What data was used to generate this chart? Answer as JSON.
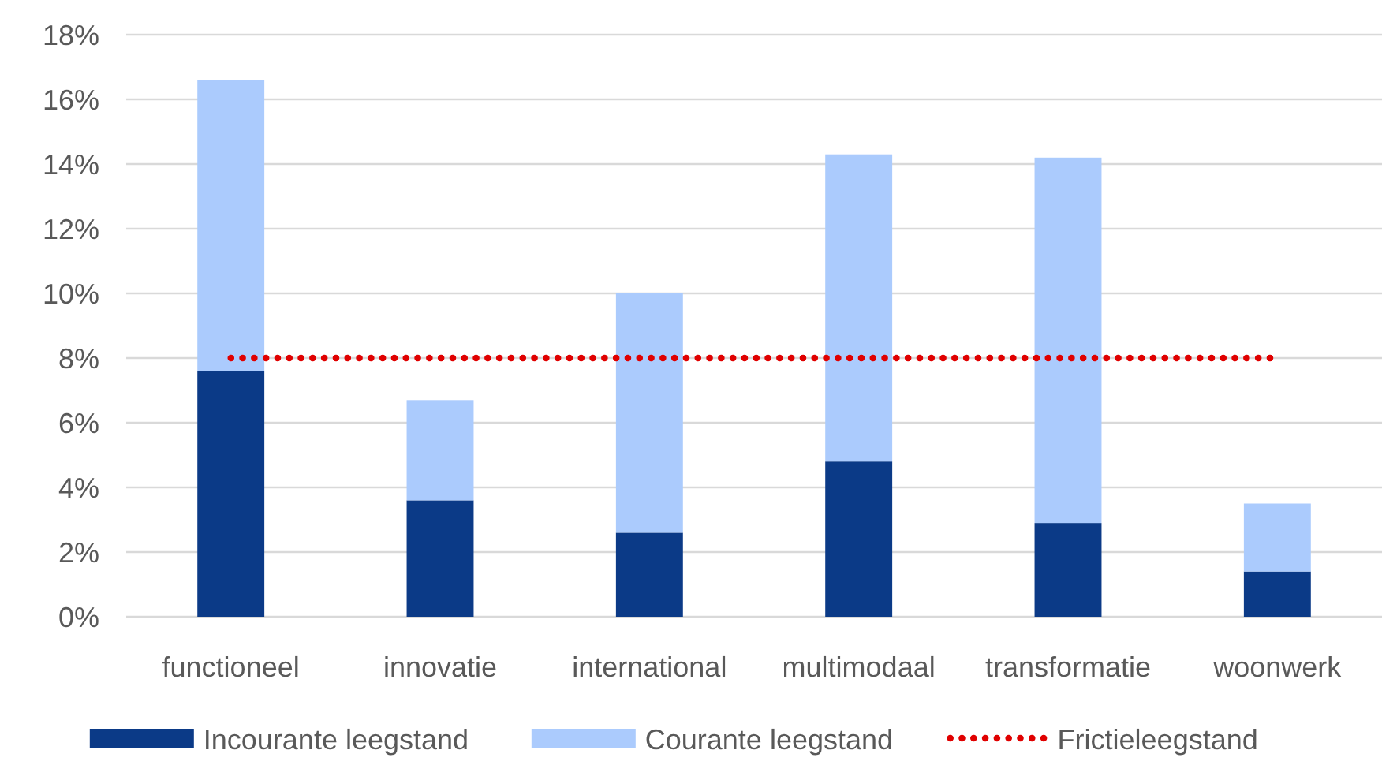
{
  "chart_data": {
    "type": "bar",
    "stacked": true,
    "categories": [
      "functioneel",
      "innovatie",
      "international",
      "multimodaal",
      "transformatie",
      "woonwerk"
    ],
    "series": [
      {
        "name": "Incourante leegstand",
        "color": "#0b3a87",
        "values": [
          7.6,
          3.6,
          2.6,
          4.8,
          2.9,
          1.4
        ]
      },
      {
        "name": "Courante leegstand",
        "color": "#abcbfd",
        "values": [
          9.0,
          3.1,
          7.4,
          9.5,
          11.3,
          2.1
        ]
      },
      {
        "name": "Frictieleegstand",
        "color": "#e00000",
        "type": "line",
        "line_style": "dotted",
        "values": [
          8,
          8,
          8,
          8,
          8,
          8
        ]
      }
    ],
    "ylim": [
      0,
      18
    ],
    "yticks": [
      {
        "value": 0,
        "label": "0%"
      },
      {
        "value": 2,
        "label": "2%"
      },
      {
        "value": 4,
        "label": "4%"
      },
      {
        "value": 6,
        "label": "6%"
      },
      {
        "value": 8,
        "label": "8%"
      },
      {
        "value": 10,
        "label": "10%"
      },
      {
        "value": 12,
        "label": "12%"
      },
      {
        "value": 14,
        "label": "14%"
      },
      {
        "value": 16,
        "label": "16%"
      },
      {
        "value": 18,
        "label": "18%"
      }
    ],
    "grid": "y",
    "legend": "bottom"
  }
}
